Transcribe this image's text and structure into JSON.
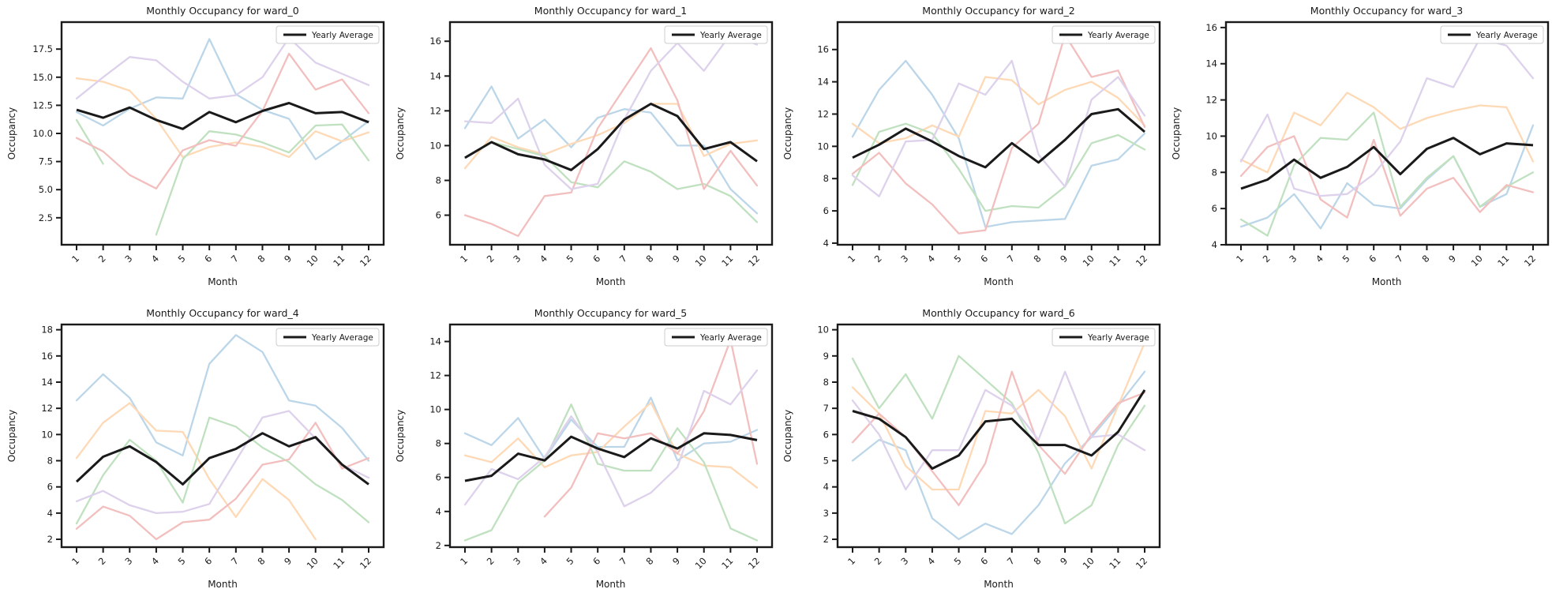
{
  "figure": {
    "background": "#ffffff",
    "axis_color": "#1a1a1a",
    "text_color": "#1a1a1a",
    "legend_border_color": "#cccccc",
    "legend_fill_color": "#ffffff",
    "year_line_colors": [
      "#bcd6e9",
      "#fed9b6",
      "#c0e1c0",
      "#f2bfbe",
      "#ddd1ec"
    ],
    "average_line_color": "#1a1a1a"
  },
  "chart_data": [
    {
      "type": "line",
      "title": "Monthly Occupancy for ward_0",
      "xlabel": "Month",
      "ylabel": "Occupancy",
      "legend_label": "Yearly Average",
      "legend_position": "upper right",
      "grid": false,
      "x": [
        1,
        2,
        3,
        4,
        5,
        6,
        7,
        8,
        9,
        10,
        11,
        12
      ],
      "ylim": [
        0.1,
        19.9
      ],
      "yticks": [
        2.5,
        5.0,
        7.5,
        10.0,
        12.5,
        15.0,
        17.5
      ],
      "ytick_labels": [
        "2.5",
        "5.0",
        "7.5",
        "10.0",
        "12.5",
        "15.0",
        "17.5"
      ],
      "series": [
        {
          "color_index": 0,
          "values": [
            11.9,
            10.7,
            12.2,
            13.2,
            13.1,
            18.4,
            13.5,
            12.1,
            11.3,
            7.7,
            9.3,
            11.1
          ]
        },
        {
          "color_index": 1,
          "values": [
            14.9,
            14.6,
            13.8,
            11.3,
            7.9,
            8.8,
            9.2,
            8.8,
            7.9,
            10.2,
            9.3,
            10.1
          ]
        },
        {
          "color_index": 2,
          "values": [
            11.2,
            7.3,
            null,
            1.0,
            7.7,
            10.2,
            9.9,
            9.2,
            8.3,
            10.7,
            10.8,
            7.6
          ]
        },
        {
          "color_index": 3,
          "values": [
            9.6,
            8.4,
            6.3,
            5.1,
            8.5,
            9.4,
            8.9,
            12.0,
            17.1,
            13.9,
            14.8,
            11.8
          ]
        },
        {
          "color_index": 4,
          "values": [
            13.1,
            15.0,
            16.8,
            16.5,
            14.6,
            13.1,
            13.4,
            15.0,
            18.5,
            16.3,
            15.3,
            14.3
          ]
        }
      ],
      "average": {
        "label": "Yearly Average",
        "values": [
          12.1,
          11.4,
          12.3,
          11.2,
          10.4,
          11.9,
          11.0,
          12.0,
          12.7,
          11.8,
          11.9,
          11.0
        ]
      }
    },
    {
      "type": "line",
      "title": "Monthly Occupancy for ward_1",
      "xlabel": "Month",
      "ylabel": "Occupancy",
      "legend_label": "Yearly Average",
      "legend_position": "upper right",
      "grid": false,
      "x": [
        1,
        2,
        3,
        4,
        5,
        6,
        7,
        8,
        9,
        10,
        11,
        12
      ],
      "ylim": [
        4.3,
        17.1
      ],
      "yticks": [
        6,
        8,
        10,
        12,
        14,
        16
      ],
      "ytick_labels": [
        "6",
        "8",
        "10",
        "12",
        "14",
        "16"
      ],
      "series": [
        {
          "color_index": 0,
          "values": [
            11.0,
            13.4,
            10.4,
            11.5,
            9.9,
            11.6,
            12.1,
            11.9,
            10.0,
            10.0,
            7.5,
            6.1
          ]
        },
        {
          "color_index": 1,
          "values": [
            8.7,
            10.5,
            9.9,
            9.5,
            10.1,
            10.6,
            11.3,
            12.4,
            12.4,
            9.4,
            10.1,
            10.3
          ]
        },
        {
          "color_index": 2,
          "values": [
            9.3,
            10.2,
            9.8,
            9.4,
            7.9,
            7.6,
            9.1,
            8.5,
            7.5,
            7.8,
            7.1,
            5.6
          ]
        },
        {
          "color_index": 3,
          "values": [
            6.0,
            5.5,
            4.8,
            7.1,
            7.3,
            11.0,
            13.3,
            15.6,
            12.6,
            7.5,
            9.7,
            7.7
          ]
        },
        {
          "color_index": 4,
          "values": [
            11.4,
            11.3,
            12.7,
            8.9,
            7.5,
            7.8,
            11.5,
            14.3,
            15.9,
            14.3,
            16.4,
            15.8
          ]
        }
      ],
      "average": {
        "label": "Yearly Average",
        "values": [
          9.3,
          10.2,
          9.5,
          9.2,
          8.6,
          9.8,
          11.5,
          12.4,
          11.7,
          9.8,
          10.2,
          9.1
        ]
      }
    },
    {
      "type": "line",
      "title": "Monthly Occupancy for ward_2",
      "xlabel": "Month",
      "ylabel": "Occupancy",
      "legend_label": "Yearly Average",
      "legend_position": "upper right",
      "grid": false,
      "x": [
        1,
        2,
        3,
        4,
        5,
        6,
        7,
        8,
        9,
        10,
        11,
        12
      ],
      "ylim": [
        3.9,
        17.7
      ],
      "yticks": [
        4,
        6,
        8,
        10,
        12,
        14,
        16
      ],
      "ytick_labels": [
        "4",
        "6",
        "8",
        "10",
        "12",
        "14",
        "16"
      ],
      "series": [
        {
          "color_index": 0,
          "values": [
            10.6,
            13.5,
            15.3,
            13.2,
            10.5,
            5.0,
            5.3,
            5.4,
            5.5,
            8.8,
            9.2,
            10.8
          ]
        },
        {
          "color_index": 1,
          "values": [
            11.4,
            10.2,
            10.5,
            11.3,
            10.6,
            14.3,
            14.1,
            12.6,
            13.5,
            14.0,
            13.0,
            11.3
          ]
        },
        {
          "color_index": 2,
          "values": [
            7.6,
            10.9,
            11.4,
            10.8,
            8.6,
            6.0,
            6.3,
            6.2,
            7.5,
            10.2,
            10.7,
            9.8
          ]
        },
        {
          "color_index": 3,
          "values": [
            8.3,
            9.6,
            7.7,
            6.4,
            4.6,
            4.8,
            9.9,
            11.4,
            16.9,
            14.3,
            14.7,
            11.2
          ]
        },
        {
          "color_index": 4,
          "values": [
            8.2,
            6.9,
            10.3,
            10.4,
            13.9,
            13.2,
            15.3,
            9.5,
            7.5,
            12.9,
            14.3,
            11.9
          ]
        }
      ],
      "average": {
        "label": "Yearly Average",
        "values": [
          9.3,
          10.1,
          11.1,
          10.3,
          9.4,
          8.7,
          10.2,
          9.0,
          10.4,
          12.0,
          12.3,
          10.9
        ]
      }
    },
    {
      "type": "line",
      "title": "Monthly Occupancy for ward_3",
      "xlabel": "Month",
      "ylabel": "Occupancy",
      "legend_label": "Yearly Average",
      "legend_position": "upper right",
      "grid": false,
      "x": [
        1,
        2,
        3,
        4,
        5,
        6,
        7,
        8,
        9,
        10,
        11,
        12
      ],
      "ylim": [
        4.0,
        16.3
      ],
      "yticks": [
        4,
        6,
        8,
        10,
        12,
        14,
        16
      ],
      "ytick_labels": [
        "4",
        "6",
        "8",
        "10",
        "12",
        "14",
        "16"
      ],
      "series": [
        {
          "color_index": 0,
          "values": [
            5.0,
            5.5,
            6.8,
            4.9,
            7.4,
            6.2,
            6.0,
            7.6,
            8.9,
            6.1,
            6.8,
            10.6
          ]
        },
        {
          "color_index": 1,
          "values": [
            8.7,
            8.0,
            11.3,
            10.6,
            12.4,
            11.6,
            10.4,
            11.0,
            11.4,
            11.7,
            11.6,
            8.6
          ]
        },
        {
          "color_index": 2,
          "values": [
            5.4,
            4.5,
            8.4,
            9.9,
            9.8,
            11.3,
            6.1,
            7.7,
            8.9,
            6.1,
            7.2,
            8.0
          ]
        },
        {
          "color_index": 3,
          "values": [
            7.8,
            9.4,
            10.0,
            6.5,
            5.5,
            9.8,
            5.6,
            7.1,
            7.7,
            5.8,
            7.3,
            6.9
          ]
        },
        {
          "color_index": 4,
          "values": [
            8.6,
            11.2,
            7.1,
            6.7,
            6.8,
            7.9,
            9.7,
            13.2,
            12.7,
            15.4,
            15.0,
            13.2
          ]
        }
      ],
      "average": {
        "label": "Yearly Average",
        "values": [
          7.1,
          7.6,
          8.7,
          7.7,
          8.3,
          9.4,
          7.9,
          9.3,
          9.9,
          9.0,
          9.6,
          9.5
        ]
      }
    },
    {
      "type": "line",
      "title": "Monthly Occupancy for ward_4",
      "xlabel": "Month",
      "ylabel": "Occupancy",
      "legend_label": "Yearly Average",
      "legend_position": "upper right",
      "grid": false,
      "x": [
        1,
        2,
        3,
        4,
        5,
        6,
        7,
        8,
        9,
        10,
        11,
        12
      ],
      "ylim": [
        1.4,
        18.4
      ],
      "yticks": [
        2,
        4,
        6,
        8,
        10,
        12,
        14,
        16,
        18
      ],
      "ytick_labels": [
        "2",
        "4",
        "6",
        "8",
        "10",
        "12",
        "14",
        "16",
        "18"
      ],
      "series": [
        {
          "color_index": 0,
          "values": [
            12.6,
            14.6,
            12.8,
            9.4,
            8.4,
            15.4,
            17.6,
            16.3,
            12.6,
            12.2,
            10.5,
            8.0
          ]
        },
        {
          "color_index": 1,
          "values": [
            8.2,
            10.9,
            12.4,
            10.3,
            10.2,
            6.6,
            3.7,
            6.6,
            5.0,
            2.0,
            null,
            null
          ]
        },
        {
          "color_index": 2,
          "values": [
            3.2,
            6.9,
            9.6,
            8.0,
            4.8,
            11.3,
            10.6,
            9.0,
            7.9,
            6.2,
            5.0,
            3.3
          ]
        },
        {
          "color_index": 3,
          "values": [
            2.8,
            4.5,
            3.8,
            2.0,
            3.3,
            3.5,
            5.1,
            7.7,
            8.1,
            10.9,
            7.4,
            8.2
          ]
        },
        {
          "color_index": 4,
          "values": [
            4.9,
            5.7,
            4.6,
            4.0,
            4.1,
            4.7,
            8.0,
            11.3,
            11.8,
            9.7,
            7.7,
            6.7
          ]
        }
      ],
      "average": {
        "label": "Yearly Average",
        "values": [
          6.4,
          8.3,
          9.1,
          7.9,
          6.2,
          8.2,
          8.9,
          10.1,
          9.1,
          9.8,
          7.7,
          6.2
        ]
      }
    },
    {
      "type": "line",
      "title": "Monthly Occupancy for ward_5",
      "xlabel": "Month",
      "ylabel": "Occupancy",
      "legend_label": "Yearly Average",
      "legend_position": "upper right",
      "grid": false,
      "x": [
        1,
        2,
        3,
        4,
        5,
        6,
        7,
        8,
        9,
        10,
        11,
        12
      ],
      "ylim": [
        1.9,
        15.0
      ],
      "yticks": [
        2,
        4,
        6,
        8,
        10,
        12,
        14
      ],
      "ytick_labels": [
        "2",
        "4",
        "6",
        "8",
        "10",
        "12",
        "14"
      ],
      "series": [
        {
          "color_index": 0,
          "values": [
            8.6,
            7.9,
            9.5,
            7.1,
            9.4,
            7.8,
            7.8,
            10.7,
            7.0,
            8.0,
            8.1,
            8.8
          ]
        },
        {
          "color_index": 1,
          "values": [
            7.3,
            6.9,
            8.3,
            6.6,
            7.3,
            7.5,
            9.0,
            10.4,
            7.4,
            6.7,
            6.6,
            5.4
          ]
        },
        {
          "color_index": 2,
          "values": [
            2.3,
            2.9,
            5.7,
            7.0,
            10.3,
            6.8,
            6.4,
            6.4,
            8.9,
            6.9,
            3.0,
            2.3
          ]
        },
        {
          "color_index": 3,
          "values": [
            null,
            null,
            null,
            3.7,
            5.4,
            8.6,
            8.3,
            8.6,
            7.4,
            9.9,
            14.1,
            6.8
          ]
        },
        {
          "color_index": 4,
          "values": [
            4.4,
            6.5,
            5.9,
            7.2,
            9.6,
            7.5,
            4.3,
            5.1,
            6.6,
            11.1,
            10.3,
            12.3
          ]
        }
      ],
      "average": {
        "label": "Yearly Average",
        "values": [
          5.8,
          6.1,
          7.4,
          7.0,
          8.4,
          7.7,
          7.2,
          8.3,
          7.7,
          8.6,
          8.5,
          8.2
        ]
      }
    },
    {
      "type": "line",
      "title": "Monthly Occupancy for ward_6",
      "xlabel": "Month",
      "ylabel": "Occupancy",
      "legend_label": "Yearly Average",
      "legend_position": "upper right",
      "grid": false,
      "x": [
        1,
        2,
        3,
        4,
        5,
        6,
        7,
        8,
        9,
        10,
        11,
        12
      ],
      "ylim": [
        1.7,
        10.2
      ],
      "yticks": [
        2,
        3,
        4,
        5,
        6,
        7,
        8,
        9,
        10
      ],
      "ytick_labels": [
        "2",
        "3",
        "4",
        "5",
        "6",
        "7",
        "8",
        "9",
        "10"
      ],
      "series": [
        {
          "color_index": 0,
          "values": [
            5.0,
            5.8,
            5.4,
            2.8,
            2.0,
            2.6,
            2.2,
            3.3,
            4.9,
            5.9,
            7.1,
            8.4
          ]
        },
        {
          "color_index": 1,
          "values": [
            7.8,
            6.8,
            4.8,
            3.9,
            3.9,
            6.9,
            6.8,
            7.7,
            6.7,
            4.7,
            7.1,
            9.5
          ]
        },
        {
          "color_index": 2,
          "values": [
            8.9,
            7.0,
            8.3,
            6.6,
            9.0,
            8.1,
            7.2,
            5.3,
            2.6,
            3.3,
            5.6,
            7.1
          ]
        },
        {
          "color_index": 3,
          "values": [
            5.7,
            6.8,
            5.9,
            4.6,
            3.3,
            4.9,
            8.4,
            5.6,
            4.5,
            6.0,
            7.2,
            7.6
          ]
        },
        {
          "color_index": 4,
          "values": [
            7.3,
            6.0,
            3.9,
            5.4,
            5.4,
            7.7,
            7.1,
            5.8,
            8.4,
            5.9,
            6.0,
            5.4
          ]
        }
      ],
      "average": {
        "label": "Yearly Average",
        "values": [
          6.9,
          6.6,
          5.9,
          4.7,
          5.2,
          6.5,
          6.6,
          5.6,
          5.6,
          5.2,
          6.1,
          7.7
        ]
      }
    }
  ]
}
